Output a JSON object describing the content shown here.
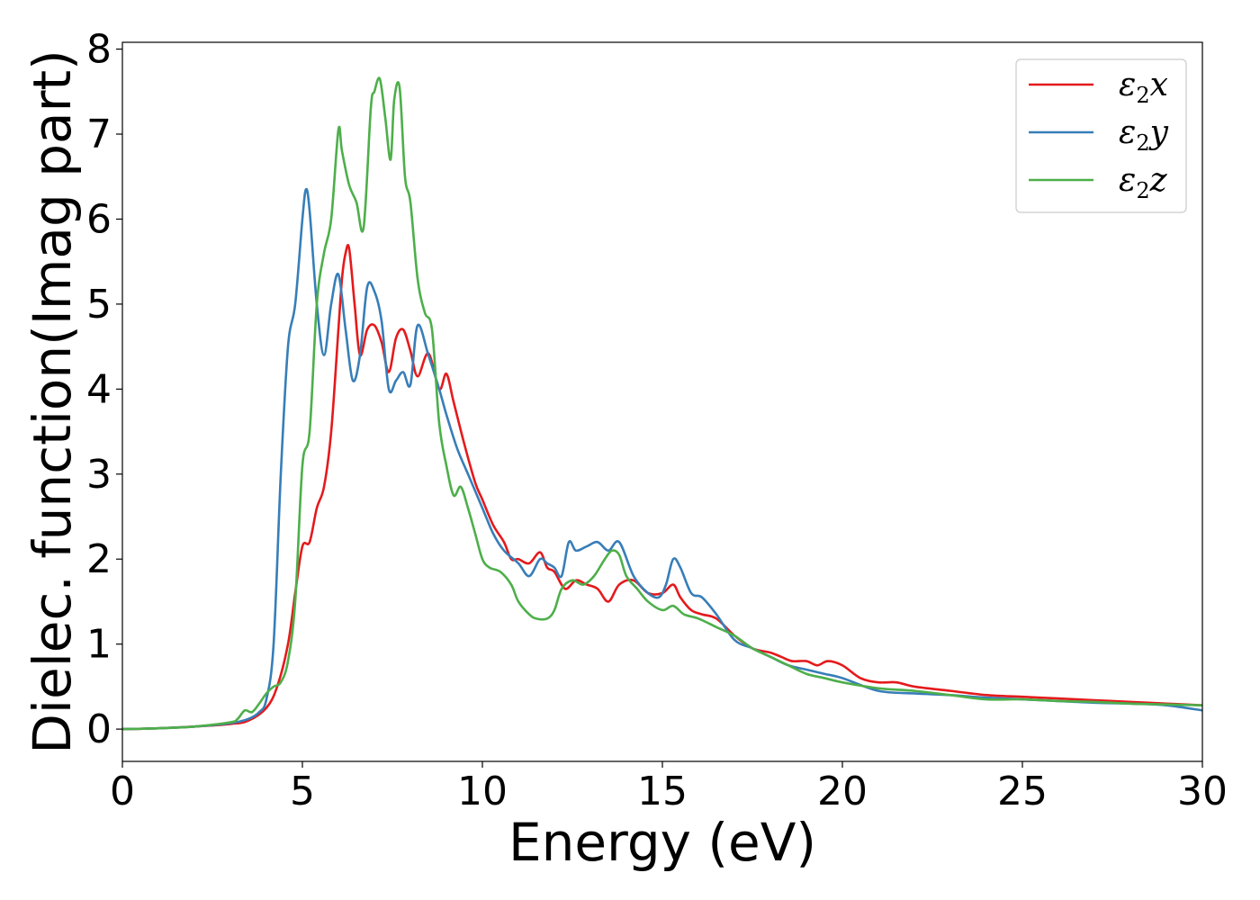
{
  "chart_data": {
    "type": "line",
    "xlabel": "Energy (eV)",
    "ylabel": "Dielec. function(Imag part)",
    "xlim": [
      0,
      30
    ],
    "ylim": [
      -0.38,
      8.08
    ],
    "xticks": [
      0,
      5,
      10,
      15,
      20,
      25,
      30
    ],
    "yticks": [
      0,
      1,
      2,
      3,
      4,
      5,
      6,
      7,
      8
    ],
    "grid": false,
    "legend_position": "top-right",
    "series": [
      {
        "name": "ε2x",
        "legend": {
          "base": "ε",
          "sub": "2",
          "var": "x"
        },
        "color": "#e41a1c",
        "x": [
          0,
          1,
          2,
          3,
          3.5,
          4,
          4.3,
          4.6,
          4.8,
          5,
          5.2,
          5.4,
          5.6,
          5.8,
          6,
          6.1,
          6.2,
          6.3,
          6.45,
          6.6,
          6.8,
          7,
          7.2,
          7.4,
          7.6,
          7.8,
          8,
          8.2,
          8.5,
          8.8,
          9,
          9.2,
          9.5,
          9.8,
          10,
          10.3,
          10.6,
          10.8,
          11,
          11.3,
          11.6,
          11.8,
          12,
          12.3,
          12.6,
          12.9,
          13.2,
          13.5,
          13.8,
          14.2,
          14.6,
          15,
          15.3,
          15.5,
          15.8,
          16.1,
          16.5,
          17,
          17.5,
          18,
          18.3,
          18.6,
          19,
          19.3,
          19.6,
          20,
          20.5,
          21,
          21.5,
          22,
          23,
          24,
          25,
          26,
          27,
          28,
          29,
          30
        ],
        "y": [
          0,
          0.01,
          0.03,
          0.06,
          0.1,
          0.25,
          0.5,
          1.0,
          1.6,
          2.15,
          2.2,
          2.6,
          2.85,
          3.5,
          4.7,
          5.3,
          5.6,
          5.65,
          5.0,
          4.4,
          4.7,
          4.75,
          4.55,
          4.2,
          4.6,
          4.7,
          4.45,
          4.15,
          4.42,
          4.0,
          4.18,
          3.85,
          3.35,
          2.9,
          2.7,
          2.4,
          2.2,
          2.0,
          2.0,
          1.95,
          2.08,
          1.9,
          1.85,
          1.65,
          1.75,
          1.7,
          1.65,
          1.5,
          1.7,
          1.75,
          1.6,
          1.6,
          1.7,
          1.55,
          1.4,
          1.35,
          1.3,
          1.1,
          0.95,
          0.9,
          0.85,
          0.8,
          0.8,
          0.75,
          0.8,
          0.75,
          0.6,
          0.55,
          0.55,
          0.5,
          0.45,
          0.4,
          0.38,
          0.36,
          0.34,
          0.32,
          0.3,
          0.28
        ]
      },
      {
        "name": "ε2y",
        "legend": {
          "base": "ε",
          "sub": "2",
          "var": "y"
        },
        "color": "#377eb8",
        "x": [
          0,
          1,
          2,
          3,
          3.5,
          3.8,
          4,
          4.2,
          4.4,
          4.6,
          4.8,
          5.0,
          5.1,
          5.2,
          5.4,
          5.6,
          5.8,
          6.0,
          6.2,
          6.4,
          6.6,
          6.8,
          7.0,
          7.2,
          7.4,
          7.6,
          7.8,
          8.0,
          8.2,
          8.5,
          8.8,
          9,
          9.3,
          9.6,
          10,
          10.3,
          10.6,
          11,
          11.3,
          11.6,
          11.8,
          12,
          12.2,
          12.4,
          12.6,
          12.9,
          13.2,
          13.5,
          13.8,
          14.2,
          14.6,
          14.9,
          15.1,
          15.3,
          15.5,
          15.8,
          16.1,
          16.5,
          17,
          17.5,
          18,
          18.5,
          19,
          19.5,
          20,
          21,
          22,
          23,
          24,
          25,
          26,
          27,
          28,
          29,
          30
        ],
        "y": [
          0,
          0.01,
          0.03,
          0.07,
          0.12,
          0.2,
          0.35,
          1.0,
          3.0,
          4.5,
          5.0,
          6.0,
          6.35,
          6.1,
          5.0,
          4.4,
          5.0,
          5.35,
          4.7,
          4.1,
          4.4,
          5.2,
          5.15,
          4.8,
          4.0,
          4.1,
          4.2,
          4.05,
          4.75,
          4.4,
          4.0,
          3.7,
          3.3,
          3.0,
          2.6,
          2.3,
          2.1,
          1.95,
          1.8,
          2.0,
          1.95,
          1.9,
          1.8,
          2.2,
          2.1,
          2.15,
          2.2,
          2.1,
          2.2,
          1.8,
          1.6,
          1.55,
          1.7,
          2.0,
          1.9,
          1.6,
          1.55,
          1.35,
          1.05,
          0.95,
          0.85,
          0.75,
          0.7,
          0.65,
          0.6,
          0.45,
          0.42,
          0.4,
          0.37,
          0.35,
          0.33,
          0.31,
          0.3,
          0.28,
          0.22
        ]
      },
      {
        "name": "ε2z",
        "legend": {
          "base": "ε",
          "sub": "2",
          "var": "z"
        },
        "color": "#4daf4a",
        "x": [
          0,
          1,
          2,
          3,
          3.2,
          3.4,
          3.6,
          3.8,
          4,
          4.2,
          4.4,
          4.6,
          4.8,
          5.0,
          5.2,
          5.4,
          5.6,
          5.8,
          6.0,
          6.1,
          6.3,
          6.5,
          6.7,
          6.9,
          7.0,
          7.15,
          7.3,
          7.45,
          7.55,
          7.7,
          7.85,
          8.0,
          8.2,
          8.4,
          8.6,
          8.8,
          9.0,
          9.2,
          9.4,
          9.6,
          9.8,
          10,
          10.2,
          10.5,
          10.8,
          11,
          11.3,
          11.5,
          11.8,
          12,
          12.2,
          12.5,
          12.8,
          13.1,
          13.4,
          13.6,
          13.8,
          14.0,
          14.3,
          14.6,
          15,
          15.3,
          15.6,
          16,
          16.5,
          17,
          17.5,
          18,
          18.5,
          19,
          19.5,
          20,
          21,
          22,
          23,
          24,
          25,
          26,
          27,
          28,
          29,
          30
        ],
        "y": [
          0,
          0.01,
          0.03,
          0.08,
          0.12,
          0.22,
          0.2,
          0.3,
          0.42,
          0.5,
          0.55,
          0.8,
          1.5,
          3.1,
          3.5,
          5.0,
          5.6,
          6.0,
          7.05,
          6.8,
          6.4,
          6.2,
          5.9,
          7.3,
          7.5,
          7.65,
          7.2,
          6.7,
          7.4,
          7.55,
          6.5,
          6.2,
          5.3,
          4.9,
          4.7,
          3.6,
          3.1,
          2.75,
          2.85,
          2.6,
          2.3,
          2.0,
          1.9,
          1.85,
          1.7,
          1.5,
          1.35,
          1.3,
          1.3,
          1.4,
          1.65,
          1.75,
          1.7,
          1.8,
          2.0,
          2.1,
          2.05,
          1.8,
          1.65,
          1.5,
          1.4,
          1.45,
          1.35,
          1.3,
          1.2,
          1.1,
          0.95,
          0.85,
          0.75,
          0.65,
          0.6,
          0.55,
          0.48,
          0.45,
          0.4,
          0.35,
          0.35,
          0.33,
          0.32,
          0.3,
          0.29,
          0.28
        ]
      }
    ]
  }
}
